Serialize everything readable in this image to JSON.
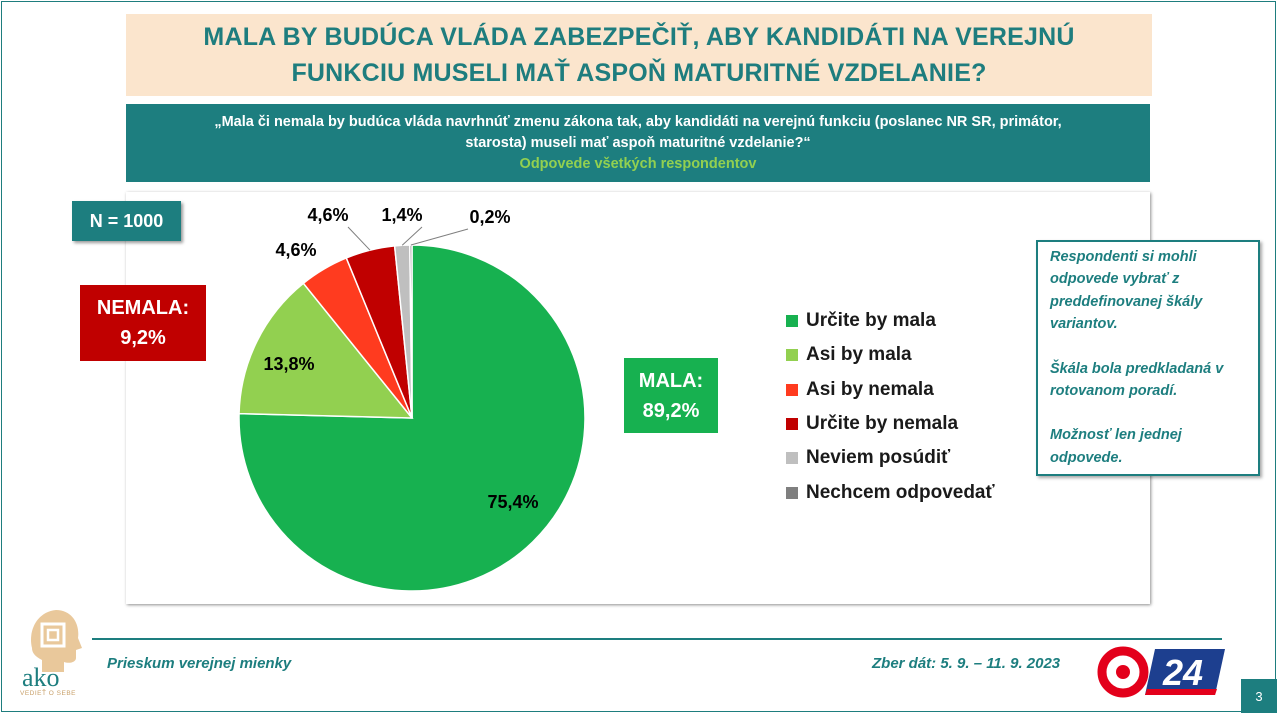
{
  "header": {
    "title_line1": "MALA BY BUDÚCA VLÁDA ZABEZPEČIŤ, ABY KANDIDÁTI NA VEREJNÚ",
    "title_line2": "FUNKCIU MUSELI MAŤ ASPOŇ MATURITNÉ VZDELANIE?"
  },
  "question": {
    "line1": "„Mala či nemala by budúca vláda navrhnúť zmenu zákona tak, aby kandidáti na verejnú funkciu (poslanec NR SR, primátor,",
    "line2": "starosta) museli mať aspoň maturitné vzdelanie?“",
    "subtitle": "Odpovede všetkých respondentov"
  },
  "sample": {
    "label": "N = 1000"
  },
  "groups": {
    "nemala": {
      "label": "NEMALA:",
      "value": "9,2%"
    },
    "mala": {
      "label": "MALA:",
      "value": "89,2%"
    }
  },
  "chart_data": {
    "type": "pie",
    "slices": [
      {
        "label": "Určite by mala",
        "value": 75.4,
        "display": "75,4%",
        "color": "#17b150"
      },
      {
        "label": "Asi by mala",
        "value": 13.8,
        "display": "13,8%",
        "color": "#92d050"
      },
      {
        "label": "Asi by nemala",
        "value": 4.6,
        "display": "4,6%",
        "color": "#ff3b1f"
      },
      {
        "label": "Určite by nemala",
        "value": 4.6,
        "display": "4,6%",
        "color": "#c00000"
      },
      {
        "label": "Neviem posúdiť",
        "value": 1.4,
        "display": "1,4%",
        "color": "#bfbfbf"
      },
      {
        "label": "Nechcem odpovedať",
        "value": 0.2,
        "display": "0,2%",
        "color": "#7f7f7f"
      }
    ],
    "start": "12 o'clock",
    "direction": "clockwise",
    "legend_position": "right"
  },
  "info": {
    "para1": "Respondenti si mohli odpovede vybrať z preddefinovanej škály variantov.",
    "para2": "Škála bola predkladaná v rotovanom poradí.",
    "para3": "Možnosť len jednej odpovede."
  },
  "footer": {
    "left": "Prieskum verejnej mienky",
    "right": "Zber dát: 5. 9. – 11. 9. 2023",
    "page": "3",
    "logo_text": "ako",
    "logo_subtext": "VEDIEŤ O SEBE",
    "tv_text": "24"
  }
}
